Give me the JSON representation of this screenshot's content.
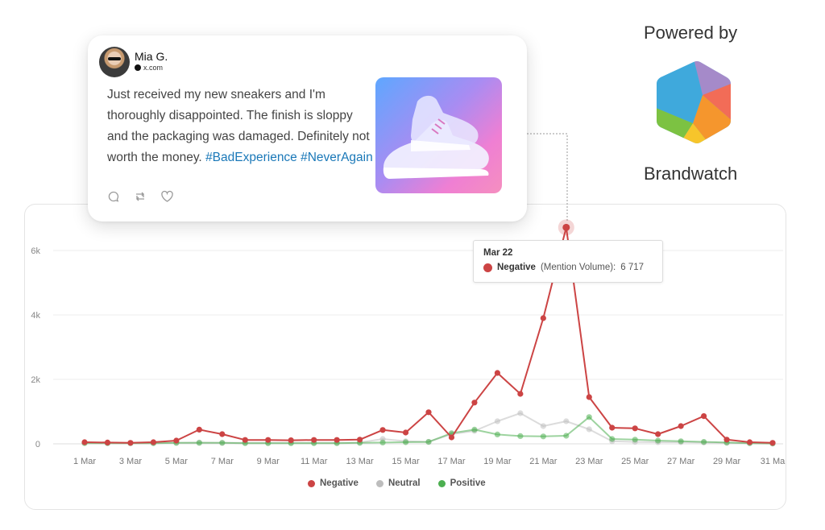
{
  "brand": {
    "powered_by": "Powered by",
    "name": "Brandwatch"
  },
  "post": {
    "author": "Mia G.",
    "source": "x.com",
    "text": "Just received my new sneakers and I'm thoroughly disappointed. The finish is sloppy and the packaging was damaged. Definitely not worth the money.",
    "hashtags": "#BadExperience #NeverAgain",
    "actions": [
      "reply-icon",
      "repost-icon",
      "like-icon"
    ]
  },
  "tooltip": {
    "date": "Mar 22",
    "series": "Negative",
    "metric": "(Mention Volume):",
    "value": "6 717"
  },
  "chart_data": {
    "type": "line",
    "title": "",
    "xlabel": "",
    "ylabel": "",
    "ylim": [
      0,
      7000
    ],
    "y_ticks": [
      "0",
      "2k",
      "4k",
      "6k"
    ],
    "y_tick_values": [
      0,
      2000,
      4000,
      6000
    ],
    "grid": true,
    "legend_position": "bottom-center",
    "x_tick_labels": [
      "1 Mar",
      "3 Mar",
      "5 Mar",
      "7 Mar",
      "9 Mar",
      "11 Mar",
      "13 Mar",
      "15 Mar",
      "17 Mar",
      "19 Mar",
      "21 Mar",
      "23 Mar",
      "25 Mar",
      "27 Mar",
      "29 Mar",
      "31 Ma"
    ],
    "x": [
      1,
      2,
      3,
      4,
      5,
      6,
      7,
      8,
      9,
      10,
      11,
      12,
      13,
      14,
      15,
      16,
      17,
      18,
      19,
      20,
      21,
      22,
      23,
      24,
      25,
      26,
      27,
      28,
      29,
      30,
      31
    ],
    "series": [
      {
        "name": "Negative",
        "color": "#cc4444",
        "values": [
          50,
          40,
          30,
          50,
          100,
          440,
          300,
          120,
          120,
          110,
          120,
          120,
          130,
          430,
          350,
          980,
          200,
          1280,
          2200,
          1550,
          3900,
          6717,
          1450,
          500,
          480,
          300,
          550,
          860,
          130,
          50,
          30
        ]
      },
      {
        "name": "Neutral",
        "color": "#c0c0c0",
        "values": [
          30,
          20,
          20,
          20,
          30,
          40,
          30,
          30,
          30,
          30,
          30,
          30,
          40,
          150,
          80,
          60,
          300,
          400,
          700,
          950,
          550,
          700,
          450,
          80,
          60,
          50,
          50,
          40,
          30,
          20,
          10
        ]
      },
      {
        "name": "Positive",
        "color": "#4caf50",
        "values": [
          20,
          20,
          20,
          20,
          30,
          30,
          30,
          20,
          20,
          20,
          20,
          20,
          30,
          40,
          50,
          60,
          330,
          440,
          290,
          240,
          230,
          250,
          830,
          150,
          130,
          100,
          80,
          60,
          40,
          20,
          10
        ]
      }
    ],
    "highlight": {
      "x": 22,
      "series": "Negative"
    }
  }
}
